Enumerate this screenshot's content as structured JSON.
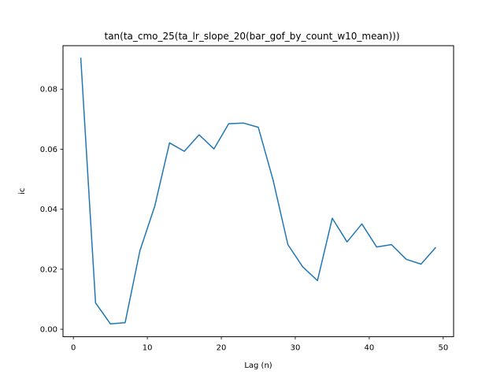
{
  "chart_data": {
    "type": "line",
    "title": "tan(ta_cmo_25(ta_lr_slope_20(bar_gof_by_count_w10_mean)))",
    "xlabel": "Lag (n)",
    "ylabel": "ic",
    "xlim": [
      -1.4,
      51.4
    ],
    "ylim": [
      -0.0025,
      0.0945
    ],
    "xticks": [
      0,
      10,
      20,
      30,
      40,
      50
    ],
    "yticks": [
      0.0,
      0.02,
      0.04,
      0.06,
      0.08
    ],
    "ytick_labels": [
      "0.00",
      "0.02",
      "0.04",
      "0.06",
      "0.08"
    ],
    "grid": false,
    "line_color": "#1f77b4",
    "series": [
      {
        "x": [
          1,
          3,
          5,
          7,
          9,
          11,
          13,
          15,
          17,
          19,
          21,
          23,
          25,
          27,
          29,
          31,
          33,
          35,
          37,
          39,
          41,
          43,
          45,
          47,
          49
        ],
        "values": [
          0.0905,
          0.0088,
          0.0018,
          0.0022,
          0.0262,
          0.041,
          0.0621,
          0.0593,
          0.0648,
          0.0601,
          0.0685,
          0.0687,
          0.0673,
          0.0497,
          0.0282,
          0.0208,
          0.0162,
          0.037,
          0.0291,
          0.0351,
          0.0274,
          0.0282,
          0.0233,
          0.0217,
          0.0273
        ]
      }
    ]
  }
}
